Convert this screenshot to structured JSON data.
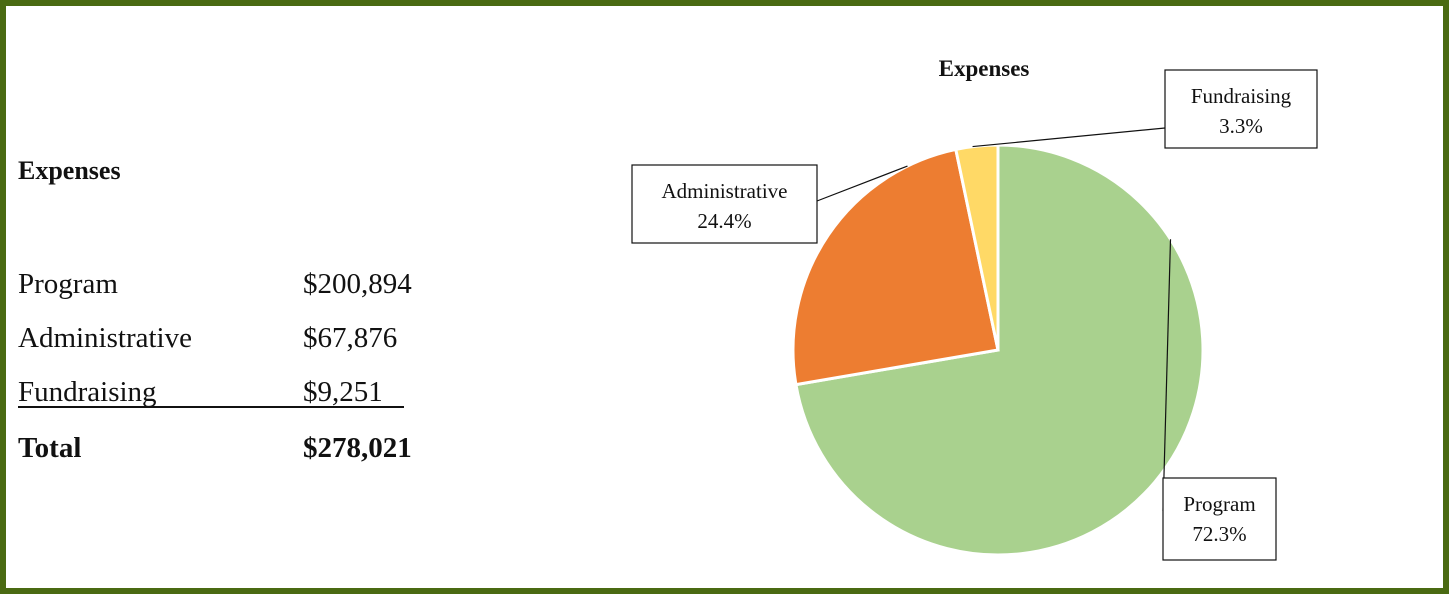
{
  "table": {
    "title": "Expenses",
    "rows": [
      [
        "Program",
        "$200,894"
      ],
      [
        "Administrative",
        "$67,876"
      ],
      [
        "Fundraising",
        "$9,251"
      ]
    ],
    "total": [
      "Total",
      "$278,021"
    ]
  },
  "chart_data": {
    "type": "pie",
    "title": "Expenses",
    "categories": [
      "Program",
      "Administrative",
      "Fundraising"
    ],
    "values": [
      72.3,
      24.4,
      3.3
    ],
    "value_labels": [
      "72.3%",
      "24.4%",
      "3.3%"
    ],
    "colors": [
      "#a9d18e",
      "#ed7d31",
      "#ffd966"
    ]
  }
}
